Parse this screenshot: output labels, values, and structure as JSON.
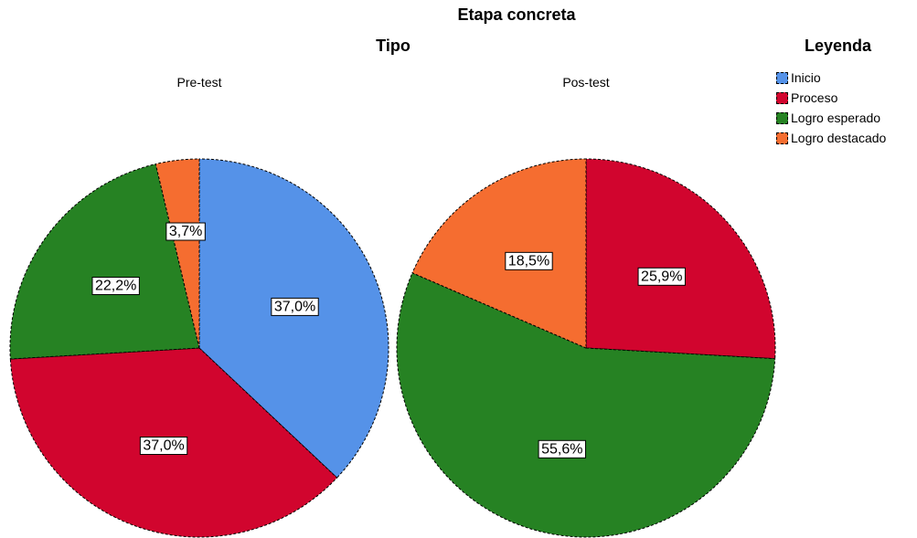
{
  "title": "Etapa concreta",
  "panel_title": "Tipo",
  "legend_title": "Leyenda",
  "legend": [
    {
      "label": "Inicio",
      "color": "#5592e8"
    },
    {
      "label": "Proceso",
      "color": "#d1052e"
    },
    {
      "label": "Logro esperado",
      "color": "#268223"
    },
    {
      "label": "Logro destacado",
      "color": "#f56d30"
    }
  ],
  "chart_data": [
    {
      "type": "pie",
      "title": "Pre-test",
      "categories": [
        "Inicio",
        "Proceso",
        "Logro esperado",
        "Logro destacado"
      ],
      "values": [
        37.0,
        37.0,
        22.2,
        3.7
      ],
      "labels": [
        "37,0%",
        "37,0%",
        "22,2%",
        "3,7%"
      ]
    },
    {
      "type": "pie",
      "title": "Pos-test",
      "categories": [
        "Inicio",
        "Proceso",
        "Logro esperado",
        "Logro destacado"
      ],
      "values": [
        0,
        25.9,
        55.6,
        18.5
      ],
      "labels": [
        "",
        "25,9%",
        "55,6%",
        "18,5%"
      ]
    }
  ]
}
